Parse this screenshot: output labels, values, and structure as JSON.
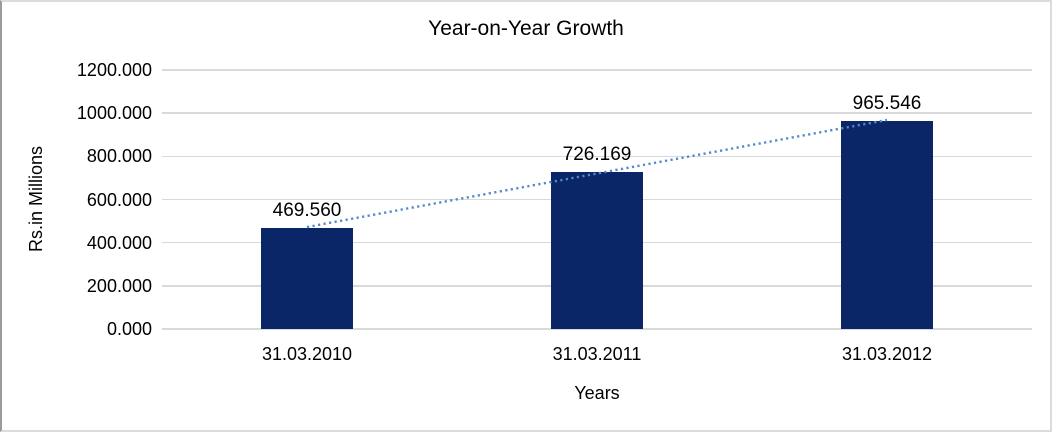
{
  "colors": {
    "bar": "#0B2666",
    "trendline": "#5488CB",
    "gridline": "#D9D9D9",
    "frame_border": "#DCDCDC",
    "background": "#FFFFFF",
    "text": "#000000"
  },
  "chart_data": {
    "type": "bar",
    "title": "Year-on-Year Growth",
    "categories": [
      "31.03.2010",
      "31.03.2011",
      "31.03.2012"
    ],
    "values": [
      469.56,
      726.169,
      965.546
    ],
    "data_labels": [
      "469.560",
      "726.169",
      "965.546"
    ],
    "xlabel": "Years",
    "ylabel": "Rs.in Millions",
    "ylim": [
      0,
      1200
    ],
    "ytick_step": 200,
    "ytick_labels": [
      "0.000",
      "200.000",
      "400.000",
      "600.000",
      "800.000",
      "1000.000",
      "1200.000"
    ],
    "grid": true,
    "legend": false,
    "trendline": {
      "type": "linear",
      "style": "dotted"
    }
  }
}
